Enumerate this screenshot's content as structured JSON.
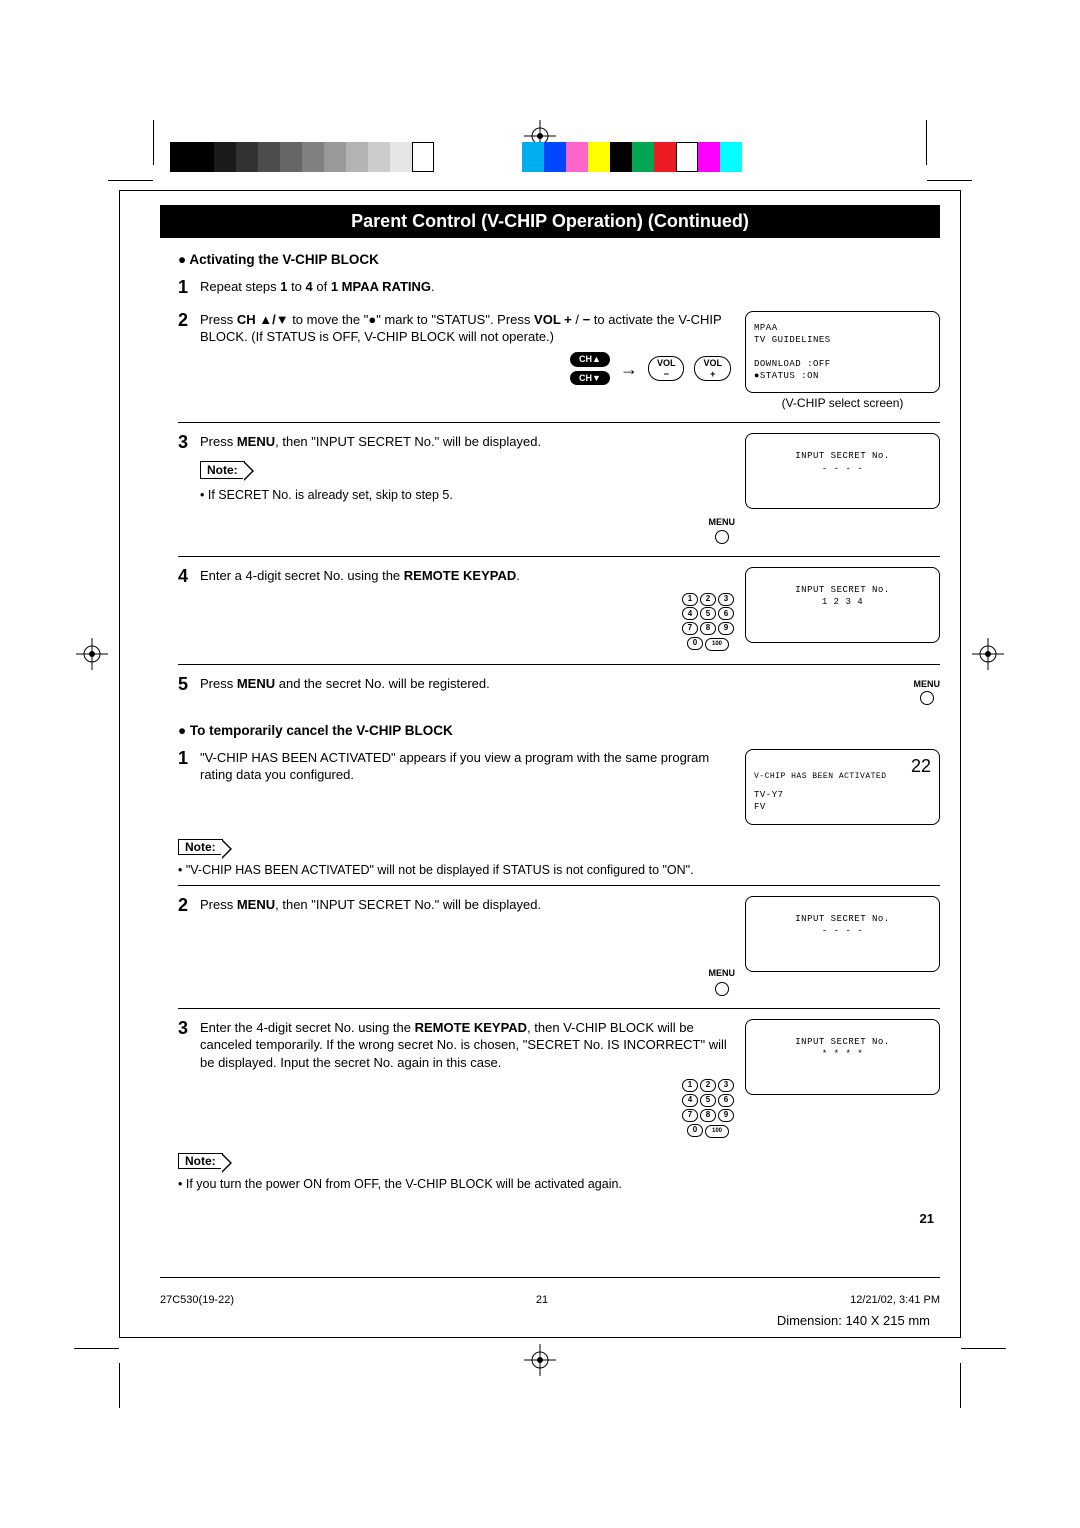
{
  "title": "Parent Control (V-CHIP Operation) (Continued)",
  "section1": {
    "heading": "● Activating the V-CHIP BLOCK",
    "step1": {
      "num": "1",
      "text_pre": "Repeat steps ",
      "bold1": "1",
      "mid": " to ",
      "bold2": "4",
      "post": " of ",
      "bold3": "1 MPAA RATING",
      "end": "."
    },
    "step2": {
      "num": "2",
      "line": "Press CH ▲/▼ to move the \"●\" mark to \"STATUS\". Press VOL + / − to activate the V-CHIP BLOCK. (If STATUS is OFF, V-CHIP BLOCK will not operate.)"
    },
    "screen1": {
      "l1": "MPAA",
      "l2": "TV GUIDELINES",
      "l3": "DOWNLOAD :OFF",
      "l4": "●STATUS  :ON",
      "caption": "(V-CHIP select screen)"
    },
    "buttons": {
      "chup": "CH▲",
      "chdn": "CH▼",
      "voldn": "VOL\n−",
      "volup": "VOL\n+"
    },
    "step3": {
      "num": "3",
      "pre": "Press ",
      "b": "MENU",
      "post": ", then \"INPUT SECRET No.\" will be displayed."
    },
    "note1_label": "Note:",
    "note1_text": "• If SECRET No. is already set, skip to step 5.",
    "screen2": {
      "l1": "INPUT SECRET No.",
      "l2": "- - - -"
    },
    "menu_label": "MENU",
    "step4": {
      "num": "4",
      "pre": "Enter a 4-digit secret No. using the ",
      "b": "REMOTE KEYPAD",
      "post": "."
    },
    "screen3": {
      "l1": "INPUT SECRET No.",
      "l2": "1 2 3 4"
    },
    "step5": {
      "num": "5",
      "pre": "Press ",
      "b": "MENU",
      "post": " and the secret No. will be registered."
    }
  },
  "section2": {
    "heading": "● To temporarily cancel the V-CHIP BLOCK",
    "step1": {
      "num": "1",
      "text": "\"V-CHIP HAS BEEN ACTIVATED\" appears if you view a program with the same program rating data you configured."
    },
    "screen4": {
      "ch": "22",
      "l1": "V-CHIP HAS BEEN ACTIVATED",
      "l2": "TV-Y7",
      "l3": "FV"
    },
    "note2_label": "Note:",
    "note2_text": "• \"V-CHIP HAS BEEN ACTIVATED\" will not be displayed if STATUS is not configured to \"ON\".",
    "step2": {
      "num": "2",
      "pre": "Press ",
      "b": "MENU",
      "post": ", then \"INPUT SECRET No.\" will be displayed."
    },
    "screen5": {
      "l1": "INPUT SECRET No.",
      "l2": "- - - -"
    },
    "step3": {
      "num": "3",
      "pre": "Enter the 4-digit secret No. using the ",
      "b": "REMOTE KEYPAD",
      "post": ", then V-CHIP BLOCK will be canceled temporarily. If the wrong secret No. is chosen, \"SECRET No. IS INCORRECT\" will be displayed. Input the secret No. again in this case."
    },
    "screen6": {
      "l1": "INPUT SECRET No.",
      "l2": "* * * *"
    },
    "note3_label": "Note:",
    "note3_text": "• If you turn the power ON from OFF, the V-CHIP BLOCK will be activated again."
  },
  "pagenum": "21",
  "footer": {
    "left": "27C530(19-22)",
    "mid": "21",
    "right": "12/21/02, 3:41 PM"
  },
  "dimension": "Dimension: 140  X  215 mm",
  "swatches_left": [
    "#000000",
    "#000000",
    "#1a1a1a",
    "#333333",
    "#4d4d4d",
    "#666666",
    "#808080",
    "#999999",
    "#b3b3b3",
    "#cccccc",
    "#e6e6e6",
    "#ffffff"
  ],
  "swatches_right": [
    "#00aeef",
    "#0047ff",
    "#ff66cc",
    "#ffff00",
    "#000000",
    "#00a651",
    "#ed1c24",
    "#ffffff",
    "#ff00ff",
    "#00ffff"
  ]
}
